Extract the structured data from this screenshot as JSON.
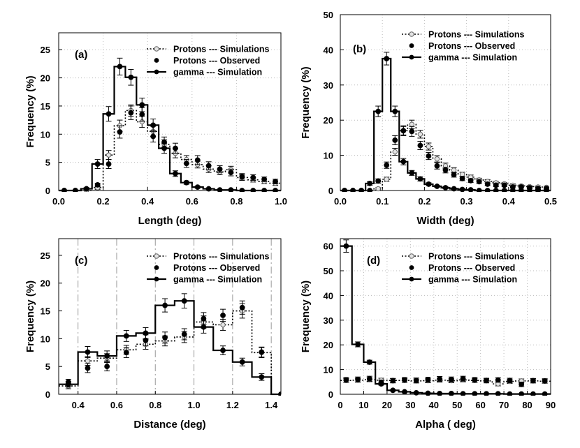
{
  "figure": {
    "legend_labels": [
      "Protons --- Simulations",
      "Protons --- Observed",
      "gamma --- Simulation"
    ]
  },
  "chart_data": [
    {
      "type": "line",
      "panel_label": "(a)",
      "xlabel": "Length (deg)",
      "ylabel": "Frequency  (%)",
      "xlim": [
        0,
        1.0
      ],
      "ylim": [
        0,
        28
      ],
      "xticks": [
        0,
        0.2,
        0.4,
        0.6,
        0.8,
        1.0
      ],
      "xtick_labels": [
        "0.0",
        "0.2",
        "0.4",
        "0.6",
        "0.8",
        "1.0"
      ],
      "yticks": [
        0,
        5,
        10,
        15,
        20,
        25
      ],
      "ytick_labels": [
        "0",
        "5",
        "10",
        "15",
        "20",
        "25"
      ],
      "grid": "dotted",
      "legend_position": "top-right",
      "bin_width": 0.05,
      "series": [
        {
          "name": "Protons --- Simulations",
          "style": "dotted-step-open-marker",
          "x": [
            0.025,
            0.075,
            0.125,
            0.175,
            0.225,
            0.275,
            0.325,
            0.375,
            0.425,
            0.475,
            0.525,
            0.575,
            0.625,
            0.675,
            0.725,
            0.775,
            0.825,
            0.875,
            0.925,
            0.975
          ],
          "y": [
            0,
            0,
            0,
            0.5,
            6.3,
            11.5,
            14.2,
            12.2,
            10.5,
            8.2,
            6.6,
            5.5,
            4.6,
            3.8,
            3.3,
            3.7,
            2.3,
            1.9,
            1.6,
            1.3
          ],
          "err": [
            0,
            0,
            0,
            0.3,
            0.8,
            1.0,
            1.0,
            1.0,
            0.9,
            0.8,
            0.8,
            0.7,
            0.6,
            0.6,
            0.5,
            0.6,
            0.5,
            0.4,
            0.4,
            0.4
          ]
        },
        {
          "name": "Protons --- Observed",
          "style": "filled-marker",
          "x": [
            0.025,
            0.075,
            0.125,
            0.175,
            0.225,
            0.275,
            0.325,
            0.375,
            0.425,
            0.475,
            0.525,
            0.575,
            0.625,
            0.675,
            0.725,
            0.775,
            0.825,
            0.875,
            0.925,
            0.975
          ],
          "y": [
            0,
            0,
            0.3,
            1.0,
            4.7,
            10.4,
            13.8,
            13.5,
            9.6,
            8.6,
            7.5,
            4.8,
            5.4,
            4.4,
            3.8,
            3.2,
            2.5,
            2.3,
            2.0,
            1.6
          ],
          "err": [
            0,
            0,
            0.2,
            0.3,
            0.8,
            1.1,
            1.2,
            1.2,
            1.0,
            0.9,
            0.9,
            0.7,
            0.8,
            0.7,
            0.6,
            0.6,
            0.5,
            0.5,
            0.4,
            0.4
          ]
        },
        {
          "name": "gamma --- Simulation",
          "style": "solid-step-filled-marker",
          "x": [
            0.025,
            0.075,
            0.125,
            0.175,
            0.225,
            0.275,
            0.325,
            0.375,
            0.425,
            0.475,
            0.525,
            0.575,
            0.625,
            0.675,
            0.725,
            0.775,
            0.825,
            0.875,
            0.925,
            0.975
          ],
          "y": [
            0,
            0,
            0.3,
            4.7,
            13.6,
            22.0,
            20.1,
            15.2,
            11.6,
            7.5,
            3.0,
            1.4,
            0.6,
            0.3,
            0.1,
            0.1,
            0,
            0,
            0,
            0
          ],
          "err": [
            0,
            0,
            0.2,
            0.8,
            1.3,
            1.5,
            1.4,
            1.2,
            1.1,
            0.9,
            0.5,
            0.3,
            0.2,
            0.1,
            0.1,
            0.1,
            0,
            0,
            0,
            0
          ]
        }
      ]
    },
    {
      "type": "line",
      "panel_label": "(b)",
      "xlabel": "Width  (deg)",
      "ylabel": "Frequency  (%)",
      "xlim": [
        0,
        0.5
      ],
      "ylim": [
        0,
        50
      ],
      "xticks": [
        0,
        0.1,
        0.2,
        0.3,
        0.4,
        0.5
      ],
      "xtick_labels": [
        "0.0",
        "0.1",
        "0.2",
        "0.3",
        "0.4",
        "0.5"
      ],
      "yticks": [
        0,
        10,
        20,
        30,
        40,
        50
      ],
      "ytick_labels": [
        "0",
        "10",
        "20",
        "30",
        "40",
        "50"
      ],
      "grid": "dotted",
      "legend_position": "top-right",
      "bin_width": 0.02,
      "series": [
        {
          "name": "Protons --- Simulations",
          "style": "dotted-step-open-marker",
          "x": [
            0.01,
            0.03,
            0.05,
            0.07,
            0.09,
            0.11,
            0.13,
            0.15,
            0.17,
            0.19,
            0.21,
            0.23,
            0.25,
            0.27,
            0.29,
            0.31,
            0.33,
            0.35,
            0.37,
            0.39,
            0.41,
            0.43,
            0.45,
            0.47,
            0.49
          ],
          "y": [
            0,
            0,
            0,
            0,
            0.5,
            3.2,
            11.0,
            17.0,
            18.8,
            16.0,
            12.5,
            9.0,
            7.0,
            5.8,
            4.6,
            3.8,
            3.0,
            2.6,
            2.2,
            1.9,
            1.5,
            1.3,
            1.1,
            1.0,
            0.9
          ],
          "err": [
            0,
            0,
            0,
            0,
            0.3,
            0.6,
            1.0,
            1.2,
            1.2,
            1.1,
            1.0,
            0.9,
            0.8,
            0.7,
            0.6,
            0.6,
            0.5,
            0.5,
            0.4,
            0.4,
            0.4,
            0.3,
            0.3,
            0.3,
            0.3
          ]
        },
        {
          "name": "Protons --- Observed",
          "style": "filled-marker",
          "x": [
            0.01,
            0.03,
            0.05,
            0.07,
            0.09,
            0.11,
            0.13,
            0.15,
            0.17,
            0.19,
            0.21,
            0.23,
            0.25,
            0.27,
            0.29,
            0.31,
            0.33,
            0.35,
            0.37,
            0.39,
            0.41,
            0.43,
            0.45,
            0.47,
            0.49
          ],
          "y": [
            0,
            0,
            0,
            0,
            2.7,
            7.2,
            14.3,
            17.0,
            16.8,
            12.8,
            9.8,
            7.0,
            5.8,
            4.5,
            3.4,
            2.8,
            2.5,
            1.8,
            1.5,
            1.5,
            1.0,
            1.0,
            0.8,
            0.6,
            0.6
          ],
          "err": [
            0,
            0,
            0,
            0,
            0.6,
            0.9,
            1.3,
            1.4,
            1.4,
            1.2,
            1.0,
            0.9,
            0.8,
            0.7,
            0.6,
            0.5,
            0.5,
            0.4,
            0.4,
            0.4,
            0.3,
            0.3,
            0.3,
            0.3,
            0.3
          ]
        },
        {
          "name": "gamma --- Simulation",
          "style": "solid-step-filled-marker",
          "x": [
            0.01,
            0.03,
            0.05,
            0.07,
            0.09,
            0.11,
            0.13,
            0.15,
            0.17,
            0.19,
            0.21,
            0.23,
            0.25,
            0.27,
            0.29,
            0.31,
            0.33,
            0.35,
            0.37,
            0.39,
            0.41,
            0.43,
            0.45,
            0.47,
            0.49
          ],
          "y": [
            0,
            0,
            0,
            2.0,
            22.5,
            37.5,
            22.5,
            8.2,
            5.0,
            3.3,
            1.8,
            1.2,
            0.8,
            0.5,
            0.3,
            0.2,
            0,
            0,
            0,
            0,
            0,
            0,
            0,
            0,
            0
          ],
          "err": [
            0,
            0,
            0,
            0.5,
            1.5,
            1.8,
            1.5,
            0.9,
            0.7,
            0.6,
            0.4,
            0.3,
            0.3,
            0.2,
            0.2,
            0.1,
            0,
            0,
            0,
            0,
            0,
            0,
            0,
            0,
            0
          ]
        }
      ]
    },
    {
      "type": "line",
      "panel_label": "(c)",
      "xlabel": "Distance (deg)",
      "ylabel": "Frequency  (%)",
      "xlim": [
        0.3,
        1.45
      ],
      "ylim": [
        0,
        28
      ],
      "xticks": [
        0.4,
        0.6,
        0.8,
        1.0,
        1.2,
        1.4
      ],
      "xtick_labels": [
        "0.4",
        "0.6",
        "0.8",
        "1.0",
        "1.2",
        "1.4"
      ],
      "yticks": [
        0,
        5,
        10,
        15,
        20,
        25
      ],
      "ytick_labels": [
        "0",
        "5",
        "10",
        "15",
        "20",
        "25"
      ],
      "grid": "dashed-vertical",
      "legend_position": "top-right",
      "bin_width": 0.1,
      "series": [
        {
          "name": "Protons --- Simulations",
          "style": "dotted-step-open-marker",
          "x": [
            0.35,
            0.45,
            0.55,
            0.65,
            0.75,
            0.85,
            0.95,
            1.05,
            1.15,
            1.25,
            1.35,
            1.45
          ],
          "y": [
            1.5,
            6.0,
            6.5,
            8.0,
            9.0,
            9.6,
            10.3,
            13.0,
            12.5,
            15.0,
            7.5,
            0
          ],
          "err": [
            0.5,
            0.8,
            0.8,
            0.8,
            0.9,
            0.9,
            1.0,
            1.1,
            1.0,
            1.3,
            0.9,
            0
          ]
        },
        {
          "name": "Protons --- Observed",
          "style": "filled-marker",
          "x": [
            0.35,
            0.45,
            0.55,
            0.65,
            0.75,
            0.85,
            0.95,
            1.05,
            1.15,
            1.25,
            1.35,
            1.45
          ],
          "y": [
            2.2,
            4.7,
            5.0,
            7.5,
            9.7,
            10.2,
            10.8,
            13.6,
            14.2,
            15.6,
            7.6,
            0
          ],
          "err": [
            0.5,
            0.8,
            0.8,
            0.9,
            1.0,
            1.0,
            1.0,
            1.1,
            1.1,
            1.2,
            0.9,
            0
          ]
        },
        {
          "name": "gamma --- Simulation",
          "style": "solid-step-filled-marker",
          "x": [
            0.35,
            0.45,
            0.55,
            0.65,
            0.75,
            0.85,
            0.95,
            1.05,
            1.15,
            1.25,
            1.35,
            1.45
          ],
          "y": [
            1.8,
            7.6,
            6.9,
            10.5,
            11.0,
            16.0,
            16.8,
            12.1,
            7.9,
            5.8,
            3.1,
            0
          ],
          "err": [
            0.5,
            1.0,
            0.9,
            1.0,
            1.0,
            1.2,
            1.3,
            1.1,
            0.8,
            0.7,
            0.6,
            0
          ]
        }
      ]
    },
    {
      "type": "line",
      "panel_label": "(d)",
      "xlabel": "Alpha   ( deg)",
      "ylabel": "Frequency (%)",
      "xlim": [
        0,
        90
      ],
      "ylim": [
        0,
        63
      ],
      "xticks": [
        0,
        10,
        20,
        30,
        40,
        50,
        60,
        70,
        80,
        90
      ],
      "xtick_labels": [
        "0",
        "10",
        "20",
        "30",
        "40",
        "50",
        "60",
        "70",
        "80",
        "90"
      ],
      "yticks": [
        0,
        10,
        20,
        30,
        40,
        50,
        60
      ],
      "ytick_labels": [
        "0",
        "10",
        "20",
        "30",
        "40",
        "50",
        "60"
      ],
      "grid": "dotted",
      "legend_position": "top-right",
      "bin_width": 5,
      "series": [
        {
          "name": "Protons --- Simulations",
          "style": "dotted-step-open-marker",
          "x": [
            2.5,
            7.5,
            12.5,
            17.5,
            22.5,
            27.5,
            32.5,
            37.5,
            42.5,
            47.5,
            52.5,
            57.5,
            62.5,
            67.5,
            72.5,
            77.5,
            82.5,
            87.5
          ],
          "y": [
            5.6,
            5.7,
            5.9,
            5.7,
            5.6,
            5.6,
            5.4,
            5.5,
            5.7,
            5.5,
            5.8,
            5.6,
            5.4,
            4.2,
            5.2,
            5.4,
            5.4,
            5.3
          ],
          "err": [
            0.8,
            0.8,
            0.8,
            0.8,
            0.8,
            0.8,
            0.8,
            0.8,
            0.8,
            0.8,
            0.8,
            0.8,
            0.8,
            0.8,
            0.8,
            0.8,
            0.8,
            0.8
          ]
        },
        {
          "name": "Protons --- Observed",
          "style": "filled-marker",
          "x": [
            2.5,
            7.5,
            12.5,
            17.5,
            22.5,
            27.5,
            32.5,
            37.5,
            42.5,
            47.5,
            52.5,
            57.5,
            62.5,
            67.5,
            72.5,
            77.5,
            82.5,
            87.5
          ],
          "y": [
            5.8,
            6.0,
            6.3,
            4.8,
            5.5,
            5.8,
            5.6,
            5.9,
            6.2,
            6.0,
            6.3,
            5.8,
            5.6,
            5.8,
            5.6,
            4.0,
            5.5,
            5.4
          ],
          "err": [
            1.0,
            1.0,
            1.0,
            0.9,
            0.9,
            1.0,
            1.0,
            1.0,
            1.0,
            1.0,
            1.0,
            1.0,
            0.9,
            0.9,
            0.9,
            0.9,
            0.9,
            0.9
          ]
        },
        {
          "name": "gamma --- Simulation",
          "style": "solid-step-filled-marker",
          "x": [
            2.5,
            7.5,
            12.5,
            17.5,
            22.5,
            27.5,
            32.5,
            37.5,
            42.5,
            47.5,
            52.5,
            57.5,
            62.5,
            67.5,
            72.5,
            77.5,
            82.5,
            87.5
          ],
          "y": [
            60.0,
            20.2,
            13.0,
            4.2,
            1.6,
            1.0,
            0.6,
            0.4,
            0.3,
            0.3,
            0.2,
            0.2,
            0.2,
            0.2,
            0.1,
            0.1,
            0.1,
            0.1
          ],
          "err": [
            2.5,
            1.0,
            0.8,
            0.5,
            0.3,
            0.2,
            0.2,
            0.2,
            0.1,
            0.1,
            0.1,
            0.1,
            0.1,
            0.1,
            0.1,
            0.1,
            0.1,
            0.1
          ]
        }
      ]
    }
  ]
}
